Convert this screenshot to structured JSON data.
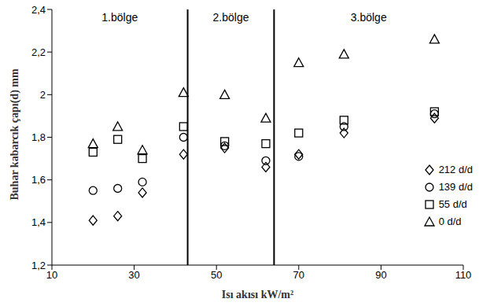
{
  "chart_data": {
    "type": "scatter",
    "x_label": "Isı akısı kW/m²",
    "y_label": "Buhar kabarcık çapı(d) mm",
    "xlim": [
      10,
      110
    ],
    "xticks": [
      10,
      30,
      50,
      70,
      90,
      110
    ],
    "ylim": [
      1.2,
      2.4
    ],
    "yticks": [
      {
        "value": 1.2,
        "label": "1,2"
      },
      {
        "value": 1.4,
        "label": "1,4"
      },
      {
        "value": 1.6,
        "label": "1,6"
      },
      {
        "value": 1.8,
        "label": "1,8"
      },
      {
        "value": 2.0,
        "label": "2"
      },
      {
        "value": 2.2,
        "label": "2,2"
      },
      {
        "value": 2.4,
        "label": "2,4"
      }
    ],
    "grid": false,
    "legend": "right",
    "vertical_lines": [
      43,
      64
    ],
    "region_labels": [
      "1.bölge",
      "2.bölge",
      "3.bölge"
    ],
    "x": [
      20,
      26,
      32,
      42,
      52,
      62,
      70,
      81,
      103
    ],
    "series": [
      {
        "name": "212 d/d",
        "color": "#000000",
        "marker": "diamond",
        "values": [
          1.41,
          1.43,
          1.54,
          1.72,
          1.75,
          1.66,
          1.72,
          1.82,
          1.89
        ]
      },
      {
        "name": "139 d/d",
        "color": "#000000",
        "marker": "circle",
        "values": [
          1.55,
          1.56,
          1.59,
          1.8,
          1.76,
          1.69,
          1.71,
          1.85,
          1.91
        ]
      },
      {
        "name": "55 d/d",
        "color": "#000000",
        "marker": "square",
        "values": [
          1.73,
          1.79,
          1.7,
          1.85,
          1.78,
          1.77,
          1.82,
          1.88,
          1.92
        ]
      },
      {
        "name": "0 d/d",
        "color": "#000000",
        "marker": "triangle",
        "values": [
          1.77,
          1.85,
          1.74,
          2.01,
          2.0,
          1.89,
          2.15,
          2.19,
          2.26
        ]
      }
    ]
  }
}
